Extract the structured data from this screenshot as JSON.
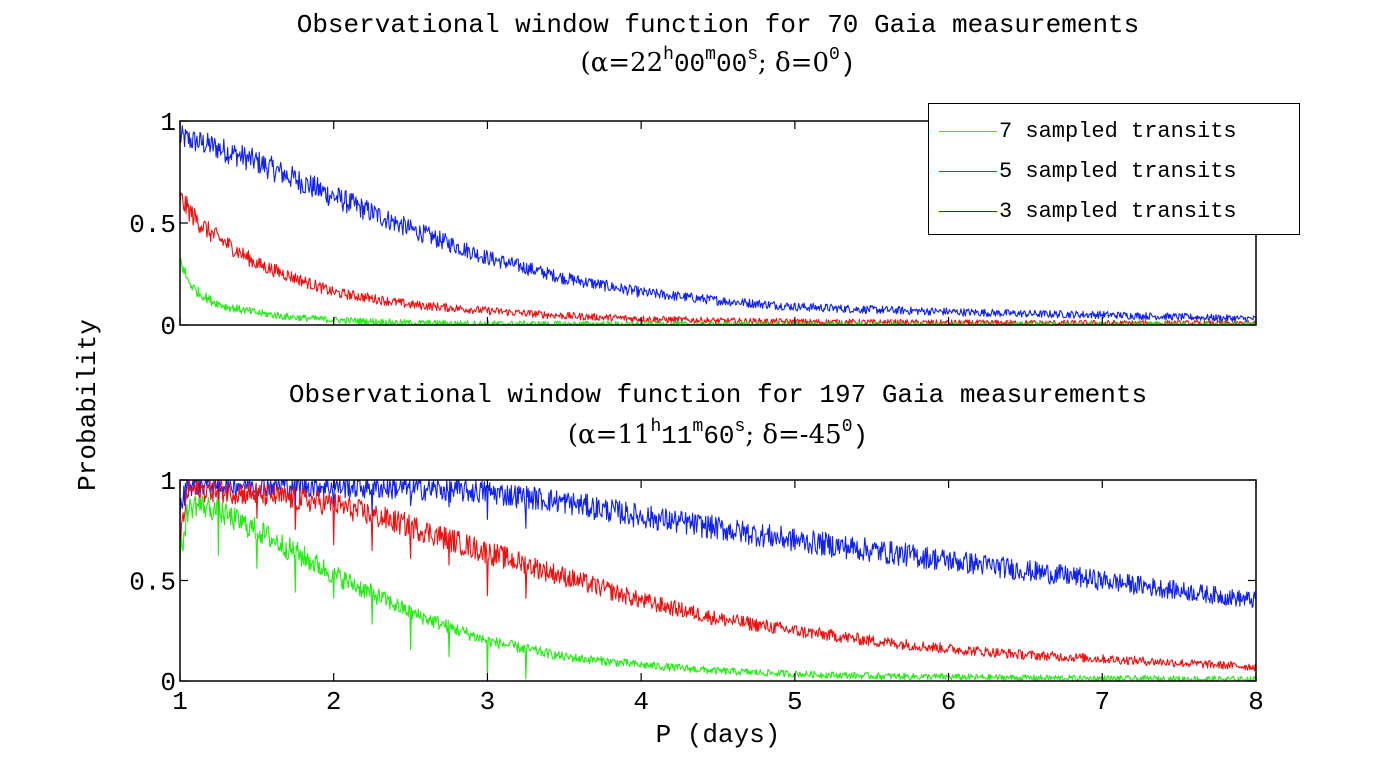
{
  "chart_data": [
    {
      "type": "line",
      "title": "Observational window function for 70 Gaia measurements",
      "subtitle": {
        "alpha_label": "(α=22",
        "h": "h",
        "m_val": "00",
        "m": "m",
        "s_val": "00",
        "s": "s",
        "delta": "; δ=0",
        "deg": "0",
        "close": ")"
      },
      "xlabel": "",
      "ylabel": "Probability",
      "xlim": [
        1,
        8
      ],
      "ylim": [
        0,
        1
      ],
      "yticks": [
        "0",
        "0.5",
        "1"
      ],
      "series": [
        {
          "name": "7 sampled transits",
          "color": "#22ee11",
          "x": [
            1.0,
            1.05,
            1.1,
            1.2,
            1.3,
            1.5,
            1.7,
            2.0,
            2.5,
            3.0,
            4.0,
            5.0,
            6.0,
            7.0,
            8.0
          ],
          "values": [
            0.32,
            0.22,
            0.17,
            0.12,
            0.09,
            0.06,
            0.04,
            0.025,
            0.01,
            0.006,
            0.003,
            0.002,
            0.001,
            0.001,
            0.001
          ]
        },
        {
          "name": "5 sampled transits",
          "color": "#ee1111",
          "x": [
            1.0,
            1.1,
            1.2,
            1.5,
            2.0,
            2.5,
            3.0,
            3.5,
            4.0,
            4.5,
            5.0,
            6.0,
            7.0,
            8.0
          ],
          "values": [
            0.62,
            0.52,
            0.45,
            0.3,
            0.16,
            0.1,
            0.07,
            0.045,
            0.03,
            0.02,
            0.015,
            0.01,
            0.008,
            0.006
          ]
        },
        {
          "name": "3 sampled transits",
          "color": "#1122ee",
          "x": [
            1.0,
            1.2,
            1.5,
            2.0,
            2.5,
            3.0,
            3.5,
            4.0,
            4.5,
            5.0,
            5.5,
            6.0,
            6.5,
            7.0,
            7.5,
            8.0
          ],
          "values": [
            0.92,
            0.88,
            0.8,
            0.63,
            0.47,
            0.33,
            0.23,
            0.16,
            0.12,
            0.09,
            0.075,
            0.065,
            0.055,
            0.05,
            0.04,
            0.03
          ]
        }
      ],
      "legend": "top-right"
    },
    {
      "type": "line",
      "title": "Observational window function for 197 Gaia measurements",
      "subtitle": {
        "alpha_label": "(α=11",
        "h": "h",
        "m_val": "11",
        "m": "m",
        "s_val": "60",
        "s": "s",
        "delta": "; δ=-45",
        "deg": "0",
        "close": ")"
      },
      "xlabel": "P (days)",
      "ylabel": "Probability",
      "xlim": [
        1,
        8
      ],
      "ylim": [
        0,
        1
      ],
      "xticks": [
        "1",
        "2",
        "3",
        "4",
        "5",
        "6",
        "7",
        "8"
      ],
      "yticks": [
        "0",
        "0.5",
        "1"
      ],
      "series": [
        {
          "name": "7 sampled transits",
          "color": "#22ee11",
          "x": [
            1.0,
            1.05,
            1.1,
            1.2,
            1.5,
            2.0,
            2.5,
            3.0,
            3.5,
            4.0,
            4.5,
            5.0,
            5.5,
            6.0,
            7.0,
            8.0
          ],
          "values": [
            0.6,
            0.85,
            0.88,
            0.86,
            0.75,
            0.53,
            0.34,
            0.2,
            0.12,
            0.08,
            0.05,
            0.035,
            0.025,
            0.02,
            0.012,
            0.008
          ]
        },
        {
          "name": "5 sampled transits",
          "color": "#ee1111",
          "x": [
            1.0,
            1.05,
            1.2,
            1.5,
            2.0,
            2.5,
            3.0,
            3.5,
            4.0,
            4.5,
            5.0,
            5.5,
            6.0,
            6.5,
            7.0,
            7.5,
            8.0
          ],
          "values": [
            0.7,
            0.95,
            0.95,
            0.93,
            0.88,
            0.77,
            0.64,
            0.52,
            0.4,
            0.31,
            0.25,
            0.2,
            0.16,
            0.13,
            0.11,
            0.09,
            0.07
          ]
        },
        {
          "name": "3 sampled transits",
          "color": "#1122ee",
          "x": [
            1.0,
            1.05,
            1.5,
            2.0,
            2.5,
            3.0,
            3.5,
            4.0,
            4.5,
            5.0,
            5.5,
            6.0,
            6.5,
            7.0,
            7.5,
            8.0
          ],
          "values": [
            0.85,
            0.98,
            0.98,
            0.97,
            0.96,
            0.94,
            0.89,
            0.82,
            0.76,
            0.7,
            0.65,
            0.6,
            0.55,
            0.5,
            0.45,
            0.4
          ]
        }
      ]
    }
  ]
}
